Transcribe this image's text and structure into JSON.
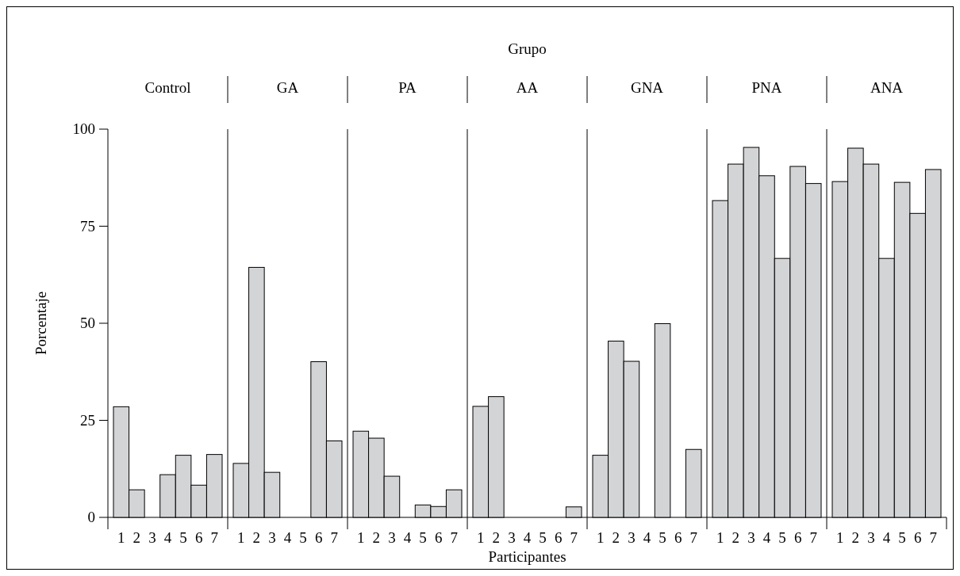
{
  "chart_data": [
    {
      "type": "bar",
      "title": "Control",
      "categories": [
        "1",
        "2",
        "3",
        "4",
        "5",
        "6",
        "7"
      ],
      "values": [
        28.5,
        7.1,
        0,
        11.0,
        16.0,
        8.3,
        16.2
      ],
      "color": "#d3d4d6",
      "ylabel": "Porcentaje",
      "ylim": [
        0,
        100
      ],
      "yticks": [
        0,
        25,
        50,
        75,
        100
      ]
    },
    {
      "type": "bar",
      "title": "GA",
      "categories": [
        "1",
        "2",
        "3",
        "4",
        "5",
        "6",
        "7"
      ],
      "values": [
        13.9,
        64.4,
        11.6,
        0,
        0,
        40.1,
        19.7
      ],
      "color": "#d3d4d6",
      "ylim": [
        0,
        100
      ],
      "tick_labels": "x"
    },
    {
      "type": "bar",
      "title": "PA",
      "categories": [
        "1",
        "2",
        "3",
        "4",
        "5",
        "6",
        "7"
      ],
      "values": [
        22.2,
        20.4,
        10.6,
        0,
        3.2,
        2.8,
        7.1
      ],
      "color": "#d3d4d6",
      "ylim": [
        0,
        100
      ],
      "tick_labels": "x"
    },
    {
      "type": "bar",
      "title": "AA",
      "categories": [
        "1",
        "2",
        "3",
        "4",
        "5",
        "6",
        "7"
      ],
      "values": [
        28.6,
        31.1,
        0,
        0,
        0,
        0,
        2.7
      ],
      "color": "#d3d4d6",
      "ylim": [
        0,
        100
      ],
      "tick_labels": "x",
      "xlabel": "Participantes",
      "annotations": [
        "Grupo"
      ]
    },
    {
      "type": "bar",
      "title": "GNA",
      "categories": [
        "1",
        "2",
        "3",
        "4",
        "5",
        "6",
        "7"
      ],
      "values": [
        16.0,
        45.4,
        40.2,
        0,
        49.9,
        0,
        17.5
      ],
      "color": "#d3d4d6",
      "ylim": [
        0,
        100
      ],
      "tick_labels": "x"
    },
    {
      "type": "bar",
      "title": "PNA",
      "categories": [
        "1",
        "2",
        "3",
        "4",
        "5",
        "6",
        "7"
      ],
      "values": [
        81.6,
        91.0,
        95.3,
        88.0,
        66.7,
        90.4,
        86.0
      ],
      "color": "#d3d4d6",
      "ylim": [
        0,
        100
      ],
      "tick_labels": "x"
    },
    {
      "type": "bar",
      "title": "ANA",
      "categories": [
        "1",
        "2",
        "3",
        "4",
        "5",
        "6",
        "7"
      ],
      "values": [
        86.5,
        95.1,
        91.0,
        66.7,
        86.3,
        78.3,
        89.6
      ],
      "color": "#d3d4d6",
      "ylim": [
        0,
        100
      ],
      "tick_labels": "x"
    }
  ]
}
